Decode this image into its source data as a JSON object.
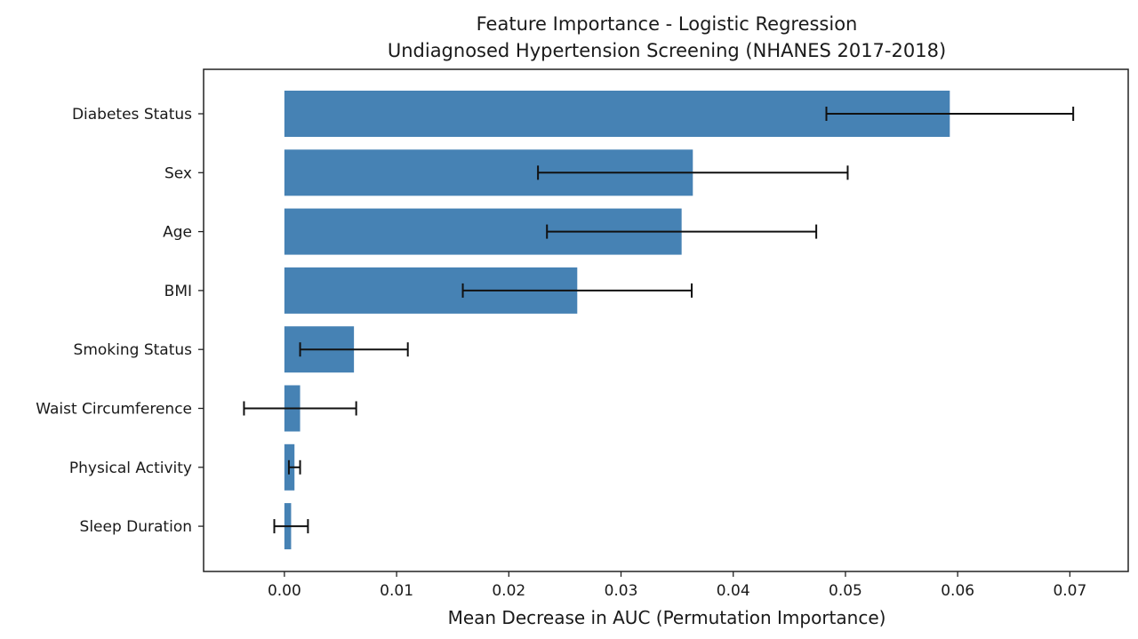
{
  "chart_data": {
    "type": "bar",
    "orientation": "horizontal",
    "title": [
      "Feature Importance - Logistic Regression",
      "Undiagnosed Hypertension Screening (NHANES 2017-2018)"
    ],
    "xlabel": "Mean Decrease in AUC (Permutation Importance)",
    "ylabel": "",
    "xlim": [
      -0.0072,
      0.0752
    ],
    "xticks": [
      0.0,
      0.01,
      0.02,
      0.03,
      0.04,
      0.05,
      0.06,
      0.07
    ],
    "xtick_labels": [
      "0.00",
      "0.01",
      "0.02",
      "0.03",
      "0.04",
      "0.05",
      "0.06",
      "0.07"
    ],
    "grid": false,
    "bar_color": "#4682b4",
    "errorbar_color": "#111111",
    "categories": [
      "Diabetes Status",
      "Sex",
      "Age",
      "BMI",
      "Smoking Status",
      "Waist Circumference",
      "Physical Activity",
      "Sleep Duration"
    ],
    "values": [
      0.0593,
      0.0364,
      0.0354,
      0.0261,
      0.0062,
      0.0014,
      0.0009,
      0.0006
    ],
    "errors": [
      0.011,
      0.0138,
      0.012,
      0.0102,
      0.0048,
      0.005,
      0.0005,
      0.0015
    ]
  }
}
